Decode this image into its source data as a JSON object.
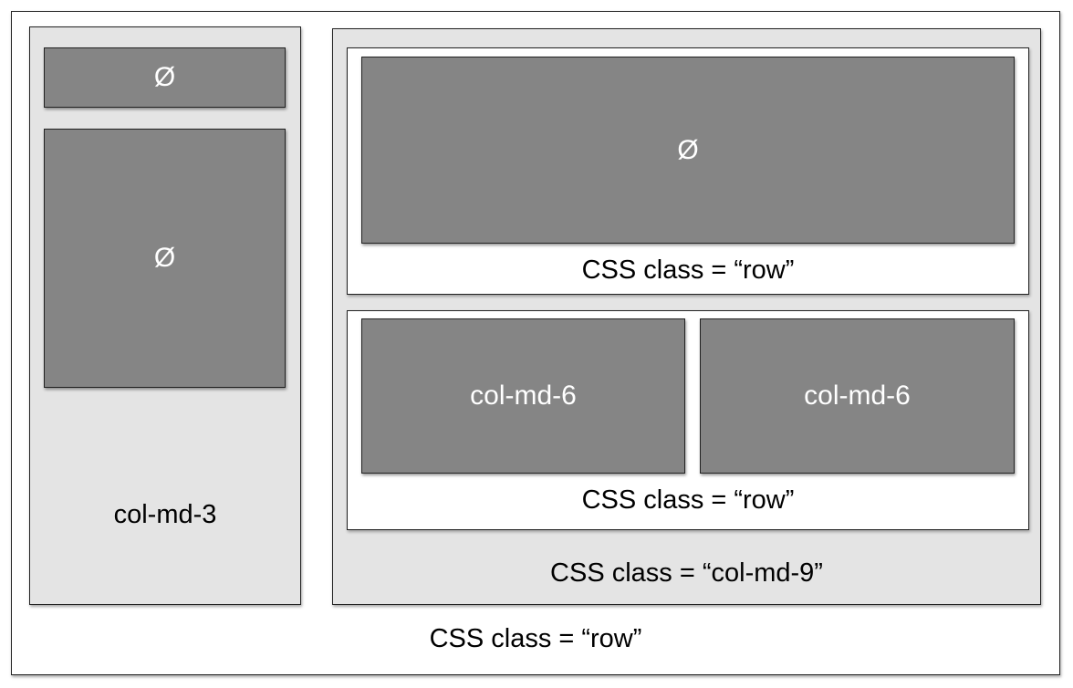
{
  "outer_row": {
    "label": "CSS class = “row”"
  },
  "left_column": {
    "label": "col-md-3",
    "boxes": [
      "Ø",
      "Ø"
    ]
  },
  "right_column": {
    "label": "CSS class = “col-md-9”",
    "top_row": {
      "label": "CSS class = “row”",
      "box": "Ø"
    },
    "bottom_row": {
      "label": "CSS class = “row”",
      "columns": [
        "col-md-6",
        "col-md-6"
      ]
    }
  }
}
